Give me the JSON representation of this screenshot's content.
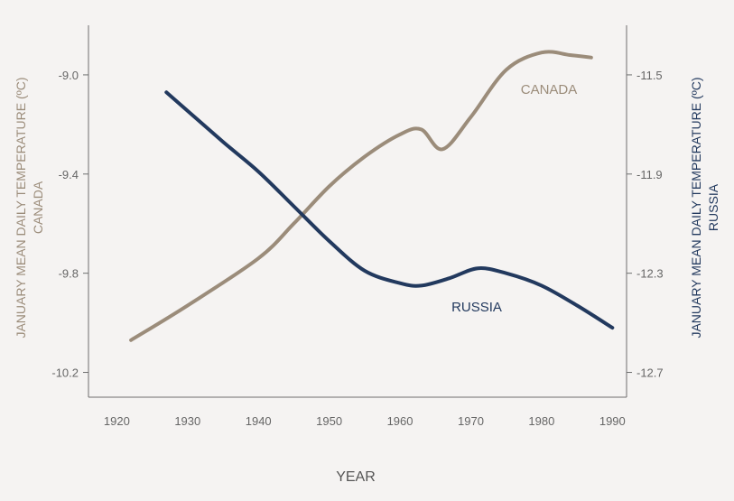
{
  "chart_data": {
    "type": "line",
    "title": "",
    "xlabel": "YEAR",
    "ylabel_left": [
      "JANUARY MEAN DAILY TEMPERATURE (ºC)",
      "CANADA"
    ],
    "ylabel_right": [
      "JANUARY MEAN DAILY TEMPERATURE (ºC)",
      "RUSSIA"
    ],
    "xlim": [
      1916,
      1992
    ],
    "ylim_left": [
      -10.3,
      -8.8
    ],
    "ylim_right": [
      -12.8,
      -11.3
    ],
    "x_ticks": [
      "1920",
      "1930",
      "1940",
      "1950",
      "1960",
      "1970",
      "1980",
      "1990"
    ],
    "y_ticks_left": [
      "-9.0",
      "-9.4",
      "-9.8",
      "-10.2"
    ],
    "y_ticks_right": [
      "-11.5",
      "-11.9",
      "-12.3",
      "-12.7"
    ],
    "grid": false,
    "series": [
      {
        "name": "CANADA",
        "axis": "left",
        "color": "#9b8c7a",
        "x": [
          1922,
          1930,
          1940,
          1945,
          1950,
          1955,
          1960,
          1963,
          1966,
          1970,
          1975,
          1980,
          1984,
          1987
        ],
        "y": [
          -10.07,
          -9.93,
          -9.74,
          -9.6,
          -9.45,
          -9.33,
          -9.24,
          -9.22,
          -9.3,
          -9.17,
          -8.98,
          -8.91,
          -8.92,
          -8.93
        ]
      },
      {
        "name": "RUSSIA",
        "axis": "right",
        "color": "#22395e",
        "x": [
          1927,
          1935,
          1940,
          1945,
          1950,
          1955,
          1960,
          1963,
          1967,
          1971,
          1975,
          1980,
          1985,
          1990
        ],
        "y": [
          -11.57,
          -11.77,
          -11.89,
          -12.03,
          -12.17,
          -12.29,
          -12.34,
          -12.35,
          -12.32,
          -12.28,
          -12.3,
          -12.35,
          -12.43,
          -12.52
        ]
      }
    ]
  },
  "colors": {
    "background": "#f5f3f2",
    "axis": "#6e6e6e",
    "tick_text": "#666666",
    "canada": "#9b8c7a",
    "russia": "#22395e"
  }
}
